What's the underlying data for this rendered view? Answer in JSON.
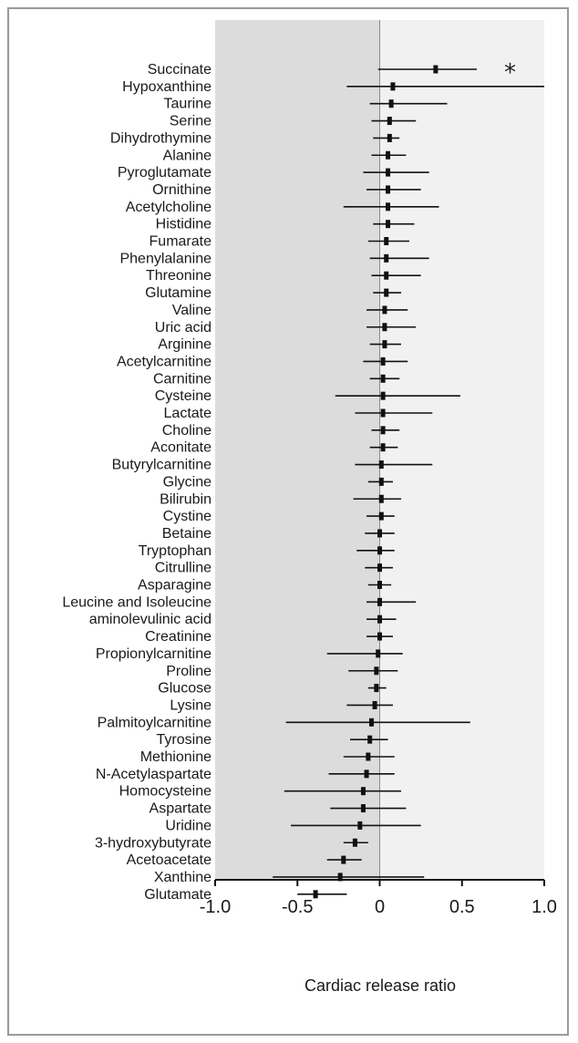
{
  "chart_data": {
    "type": "forest",
    "xlabel": "Cardiac release ratio",
    "xlim": [
      -1.0,
      1.0
    ],
    "xticks": [
      "-1.0",
      "-0.5",
      "0",
      "0.5",
      "1.0"
    ],
    "xtick_values": [
      -1.0,
      -0.5,
      0,
      0.5,
      1.0
    ],
    "shading": {
      "left": "#dcdcdc",
      "right": "#f1f1f1"
    },
    "significance_marker": "*",
    "grid": false,
    "rows": [
      {
        "name": "Succinate",
        "value": 0.34,
        "low": -0.01,
        "high": 0.59,
        "significant": true
      },
      {
        "name": "Hypoxanthine",
        "value": 0.08,
        "low": -0.2,
        "high": 1.0
      },
      {
        "name": "Taurine",
        "value": 0.07,
        "low": -0.06,
        "high": 0.41
      },
      {
        "name": "Serine",
        "value": 0.06,
        "low": -0.05,
        "high": 0.22
      },
      {
        "name": "Dihydrothymine",
        "value": 0.06,
        "low": -0.04,
        "high": 0.12
      },
      {
        "name": "Alanine",
        "value": 0.05,
        "low": -0.05,
        "high": 0.16
      },
      {
        "name": "Pyroglutamate",
        "value": 0.05,
        "low": -0.1,
        "high": 0.3
      },
      {
        "name": "Ornithine",
        "value": 0.05,
        "low": -0.08,
        "high": 0.25
      },
      {
        "name": "Acetylcholine",
        "value": 0.05,
        "low": -0.22,
        "high": 0.36
      },
      {
        "name": "Histidine",
        "value": 0.05,
        "low": -0.04,
        "high": 0.21
      },
      {
        "name": "Fumarate",
        "value": 0.04,
        "low": -0.07,
        "high": 0.18
      },
      {
        "name": "Phenylalanine",
        "value": 0.04,
        "low": -0.06,
        "high": 0.3
      },
      {
        "name": "Threonine",
        "value": 0.04,
        "low": -0.05,
        "high": 0.25
      },
      {
        "name": "Glutamine",
        "value": 0.04,
        "low": -0.04,
        "high": 0.13
      },
      {
        "name": "Valine",
        "value": 0.03,
        "low": -0.08,
        "high": 0.17
      },
      {
        "name": "Uric acid",
        "value": 0.03,
        "low": -0.08,
        "high": 0.22
      },
      {
        "name": "Arginine",
        "value": 0.03,
        "low": -0.06,
        "high": 0.13
      },
      {
        "name": "Acetylcarnitine",
        "value": 0.02,
        "low": -0.1,
        "high": 0.17
      },
      {
        "name": "Carnitine",
        "value": 0.02,
        "low": -0.06,
        "high": 0.12
      },
      {
        "name": "Cysteine",
        "value": 0.02,
        "low": -0.27,
        "high": 0.49
      },
      {
        "name": "Lactate",
        "value": 0.02,
        "low": -0.15,
        "high": 0.32
      },
      {
        "name": "Choline",
        "value": 0.02,
        "low": -0.05,
        "high": 0.12
      },
      {
        "name": "Aconitate",
        "value": 0.02,
        "low": -0.06,
        "high": 0.11
      },
      {
        "name": "Butyrylcarnitine",
        "value": 0.01,
        "low": -0.15,
        "high": 0.32
      },
      {
        "name": "Glycine",
        "value": 0.01,
        "low": -0.07,
        "high": 0.08
      },
      {
        "name": "Bilirubin",
        "value": 0.01,
        "low": -0.16,
        "high": 0.13
      },
      {
        "name": "Cystine",
        "value": 0.01,
        "low": -0.08,
        "high": 0.09
      },
      {
        "name": "Betaine",
        "value": 0.0,
        "low": -0.09,
        "high": 0.09
      },
      {
        "name": "Tryptophan",
        "value": 0.0,
        "low": -0.14,
        "high": 0.09
      },
      {
        "name": "Citrulline",
        "value": 0.0,
        "low": -0.09,
        "high": 0.08
      },
      {
        "name": "Asparagine",
        "value": 0.0,
        "low": -0.07,
        "high": 0.07
      },
      {
        "name": "Leucine and Isoleucine",
        "value": 0.0,
        "low": -0.08,
        "high": 0.22
      },
      {
        "name": "aminolevulinic acid",
        "value": 0.0,
        "low": -0.08,
        "high": 0.1
      },
      {
        "name": "Creatinine",
        "value": 0.0,
        "low": -0.08,
        "high": 0.08
      },
      {
        "name": "Propionylcarnitine",
        "value": -0.01,
        "low": -0.32,
        "high": 0.14
      },
      {
        "name": "Proline",
        "value": -0.02,
        "low": -0.19,
        "high": 0.11
      },
      {
        "name": "Glucose",
        "value": -0.02,
        "low": -0.07,
        "high": 0.04
      },
      {
        "name": "Lysine",
        "value": -0.03,
        "low": -0.2,
        "high": 0.08
      },
      {
        "name": "Palmitoylcarnitine",
        "value": -0.05,
        "low": -0.57,
        "high": 0.55
      },
      {
        "name": "Tyrosine",
        "value": -0.06,
        "low": -0.18,
        "high": 0.05
      },
      {
        "name": "Methionine",
        "value": -0.07,
        "low": -0.22,
        "high": 0.09
      },
      {
        "name": "N-Acetylaspartate",
        "value": -0.08,
        "low": -0.31,
        "high": 0.09
      },
      {
        "name": "Homocysteine",
        "value": -0.1,
        "low": -0.58,
        "high": 0.13
      },
      {
        "name": "Aspartate",
        "value": -0.1,
        "low": -0.3,
        "high": 0.16
      },
      {
        "name": "Uridine",
        "value": -0.12,
        "low": -0.54,
        "high": 0.25
      },
      {
        "name": "3-hydroxybutyrate",
        "value": -0.15,
        "low": -0.22,
        "high": -0.07
      },
      {
        "name": "Acetoacetate",
        "value": -0.22,
        "low": -0.32,
        "high": -0.11
      },
      {
        "name": "Xanthine",
        "value": -0.24,
        "low": -0.65,
        "high": 0.27
      },
      {
        "name": "Glutamate",
        "value": -0.39,
        "low": -0.5,
        "high": -0.2
      }
    ]
  }
}
